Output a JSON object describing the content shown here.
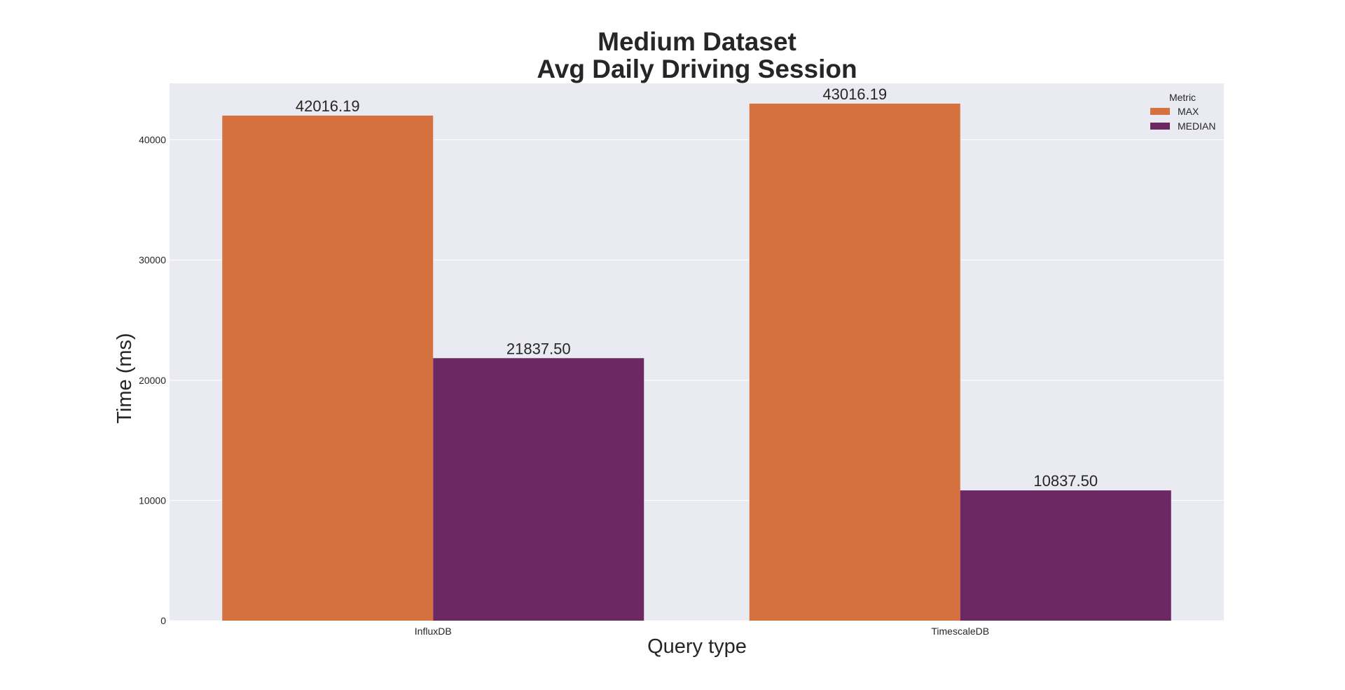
{
  "chart_data": {
    "type": "bar",
    "title": [
      "Medium Dataset",
      "Avg Daily Driving Session"
    ],
    "xlabel": "Query type",
    "ylabel": "Time (ms)",
    "categories": [
      "InfluxDB",
      "TimescaleDB"
    ],
    "series": [
      {
        "name": "MAX",
        "values": [
          42016.19,
          43016.19
        ],
        "labels": [
          "42016.19",
          "43016.19"
        ],
        "color": "#d5703f"
      },
      {
        "name": "MEDIAN",
        "values": [
          21837.5,
          10837.5
        ],
        "labels": [
          "21837.50",
          "10837.50"
        ],
        "color": "#6c2862"
      }
    ],
    "ylim": [
      0,
      44700
    ],
    "yticks": [
      0,
      10000,
      20000,
      30000,
      40000
    ],
    "legend": {
      "title": "Metric",
      "placement": "top-right"
    },
    "grid": true,
    "background": "#eaeaf2",
    "gridline_color": "#ffffff"
  }
}
